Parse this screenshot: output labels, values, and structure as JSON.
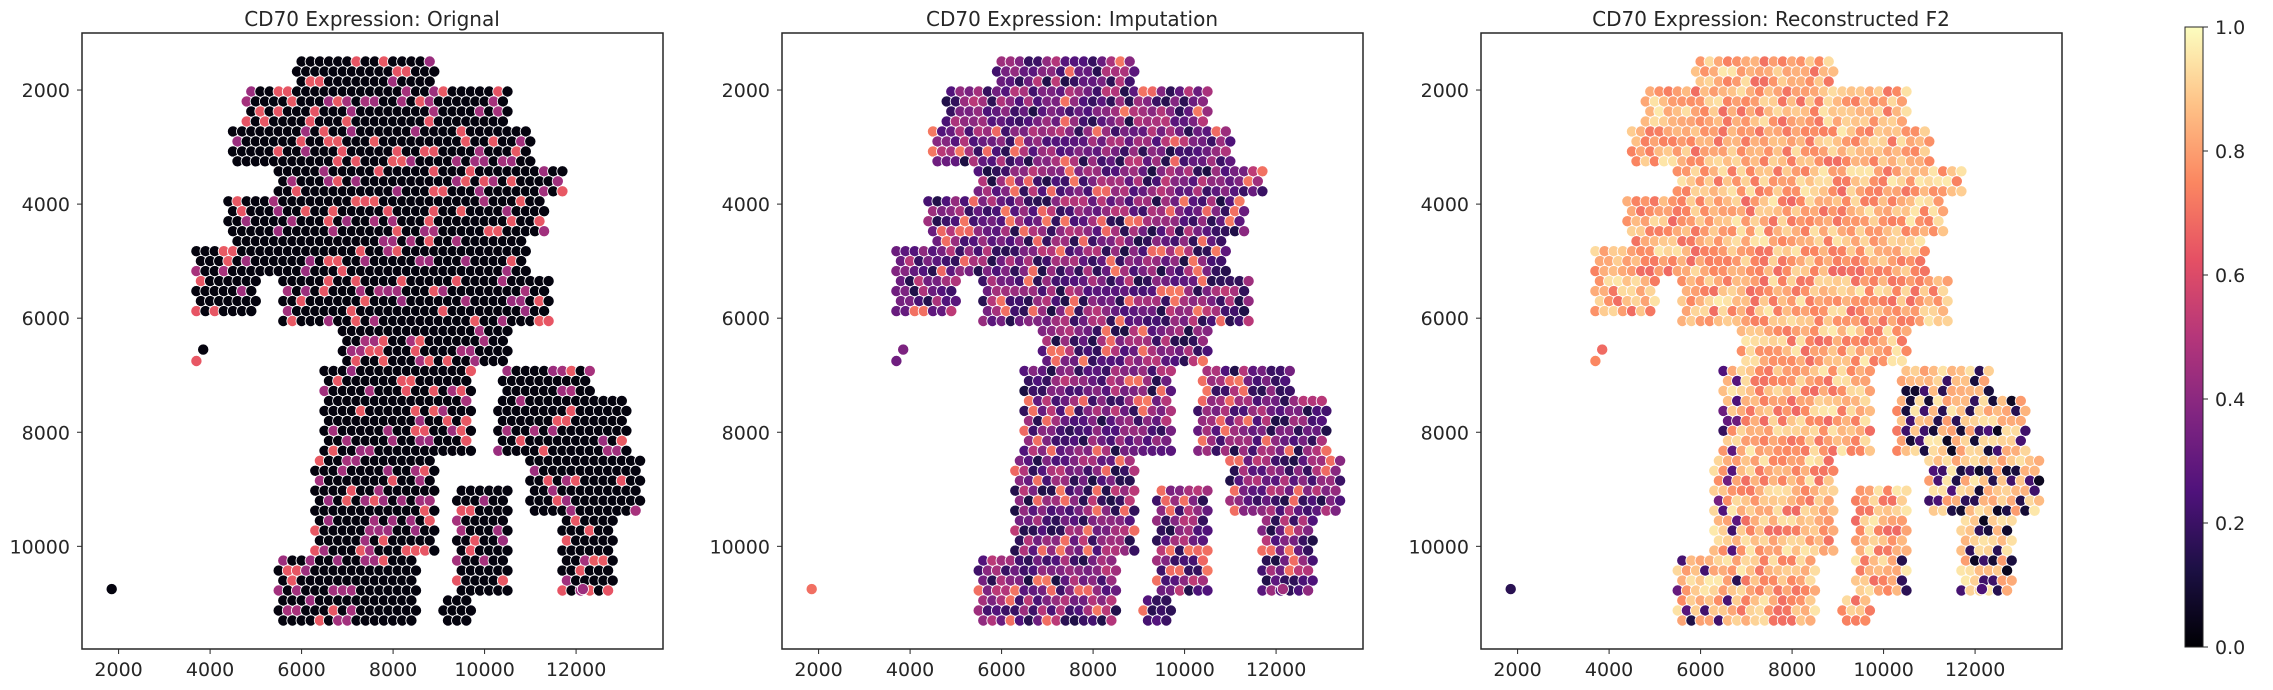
{
  "colormap": "magma",
  "chart_data": [
    {
      "type": "scatter",
      "title": "CD70 Expression: Orignal",
      "xlabel": "",
      "ylabel": "",
      "xlim": [
        1200,
        13900
      ],
      "ylim": [
        1000,
        11800
      ],
      "y_inverted": true,
      "xticks": [
        "2000",
        "4000",
        "6000",
        "8000",
        "10000",
        "12000"
      ],
      "yticks": [
        "2000",
        "4000",
        "6000",
        "8000",
        "10000"
      ],
      "color_level": "low",
      "grid": false
    },
    {
      "type": "scatter",
      "title": "CD70 Expression: Imputation",
      "xlabel": "",
      "ylabel": "",
      "xlim": [
        1200,
        13900
      ],
      "ylim": [
        1000,
        11800
      ],
      "y_inverted": true,
      "xticks": [
        "2000",
        "4000",
        "6000",
        "8000",
        "10000",
        "12000"
      ],
      "yticks": [
        "2000",
        "4000",
        "6000",
        "8000",
        "10000"
      ],
      "color_level": "medium",
      "grid": false
    },
    {
      "type": "scatter",
      "title": "CD70 Expression: Reconstructed F2",
      "xlabel": "",
      "ylabel": "",
      "xlim": [
        1200,
        13900
      ],
      "ylim": [
        1000,
        11800
      ],
      "y_inverted": true,
      "xticks": [
        "2000",
        "4000",
        "6000",
        "8000",
        "10000",
        "12000"
      ],
      "yticks": [
        "2000",
        "4000",
        "6000",
        "8000",
        "10000"
      ],
      "color_level": "high",
      "grid": false
    }
  ],
  "colorbar": {
    "range": [
      0.0,
      1.0
    ],
    "ticks": [
      "0.0",
      "0.2",
      "0.4",
      "0.6",
      "0.8",
      "1.0"
    ]
  }
}
